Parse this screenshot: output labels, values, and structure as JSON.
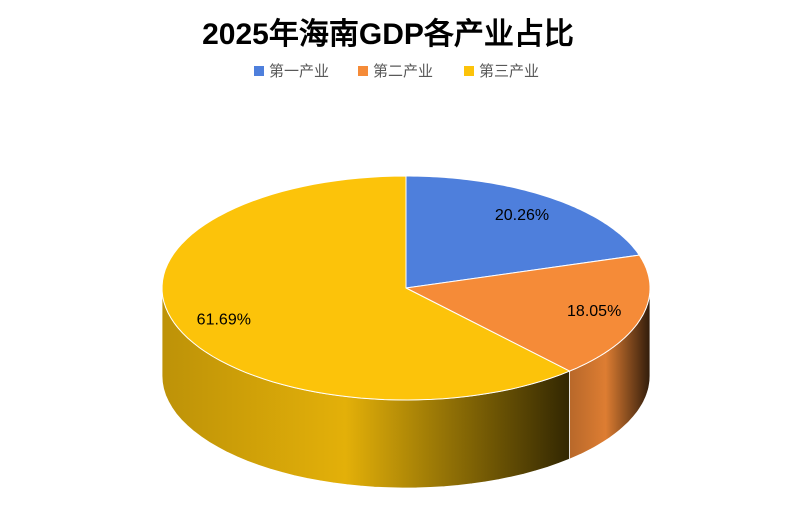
{
  "chart_data": {
    "type": "pie",
    "title": "2025年海南GDP各产业占比",
    "categories": [
      "第一产业",
      "第二产业",
      "第三产业"
    ],
    "values": [
      20.26,
      18.05,
      61.69
    ],
    "value_labels": [
      "20.26%",
      "18.05%",
      "61.69%"
    ],
    "colors": [
      "#4e7fdc",
      "#f58b38",
      "#fcc30a"
    ]
  }
}
